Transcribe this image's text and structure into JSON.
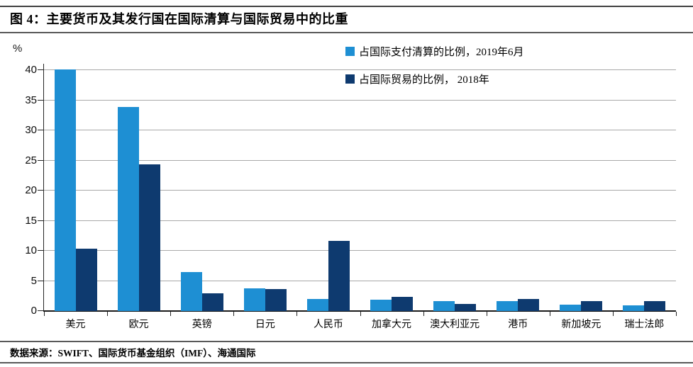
{
  "header": {},
  "chart_data": {
    "type": "bar",
    "title": "图 4：主要货币及其发行国在国际清算与国际贸易中的比重",
    "ylabel": "%",
    "categories": [
      "美元",
      "欧元",
      "英镑",
      "日元",
      "人民币",
      "加拿大元",
      "澳大利亚元",
      "港币",
      "新加坡元",
      "瑞士法郎"
    ],
    "series": [
      {
        "name": "占国际支付清算的比例，2019年6月",
        "color": "#1e8fd3",
        "values": [
          40.1,
          33.9,
          6.5,
          3.8,
          2.0,
          1.9,
          1.7,
          1.6,
          1.1,
          0.9
        ]
      },
      {
        "name": "占国际贸易的比例， 2018年",
        "color": "#0e3a6f",
        "values": [
          10.4,
          24.4,
          3.0,
          3.7,
          11.6,
          2.3,
          1.2,
          2.0,
          1.6,
          1.6
        ]
      }
    ],
    "y_ticks": [
      0,
      5,
      10,
      15,
      20,
      25,
      30,
      35,
      40
    ],
    "ylim": [
      0,
      44
    ],
    "grid": "horizontal",
    "legend_position": "top-center",
    "colors": {
      "gridline": "#a9a9a9",
      "axis": "#262626",
      "rule": "#595959"
    }
  },
  "footer": {
    "source": "数据来源：SWIFT、国际货币基金组织（IMF）、海通国际"
  }
}
